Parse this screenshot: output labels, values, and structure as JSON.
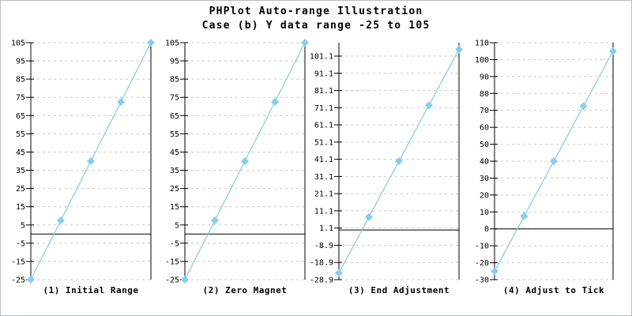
{
  "title": {
    "line1": "PHPlot Auto-range Illustration",
    "line2": "Case (b) Y data range -25 to 105"
  },
  "colors": {
    "data_line": "#87ceeb",
    "marker_fill": "#87ceeb",
    "grid": "#c8c8c8",
    "axis": "#000000",
    "zero_line": "#000000",
    "text": "#000000",
    "background": "#ffffff",
    "frame_border": "#b8bcc0"
  },
  "chart_data": [
    {
      "type": "line",
      "title": "(1) Initial Range",
      "x": [
        1,
        2,
        3,
        4,
        5
      ],
      "y": [
        -25,
        7.5,
        40,
        72.5,
        105
      ],
      "ylim": [
        -25,
        105
      ],
      "ytick_values": [
        105,
        95,
        85,
        75,
        65,
        55,
        45,
        35,
        25,
        15,
        5,
        -5,
        -15,
        -25
      ],
      "ytick_labels": [
        "105",
        "95",
        "85",
        "75",
        "65",
        "55",
        "45",
        "35",
        "25",
        "15",
        "5",
        "-5",
        "-15",
        "-25"
      ],
      "zero_line_at": 0,
      "grid": "dashed-horizontal",
      "marker": "diamond",
      "legend": "none"
    },
    {
      "type": "line",
      "title": "(2) Zero Magnet",
      "x": [
        1,
        2,
        3,
        4,
        5
      ],
      "y": [
        -25,
        7.5,
        40,
        72.5,
        105
      ],
      "ylim": [
        -25,
        105
      ],
      "ytick_values": [
        105,
        95,
        85,
        75,
        65,
        55,
        45,
        35,
        25,
        15,
        5,
        -5,
        -15,
        -25
      ],
      "ytick_labels": [
        "105",
        "95",
        "85",
        "75",
        "65",
        "55",
        "45",
        "35",
        "25",
        "15",
        "5",
        "-5",
        "-15",
        "-25"
      ],
      "zero_line_at": 0,
      "grid": "dashed-horizontal",
      "marker": "diamond",
      "legend": "none"
    },
    {
      "type": "line",
      "title": "(3) End Adjustment",
      "x": [
        1,
        2,
        3,
        4,
        5
      ],
      "y": [
        -25,
        7.5,
        40,
        72.5,
        105
      ],
      "ylim": [
        -28.9,
        108.9
      ],
      "ytick_values": [
        101.1,
        91.1,
        81.1,
        71.1,
        61.1,
        51.1,
        41.1,
        31.1,
        21.1,
        11.1,
        1.1,
        -8.9,
        -18.9,
        -28.9
      ],
      "ytick_labels": [
        "101.1",
        "91.1",
        "81.1",
        "71.1",
        "61.1",
        "51.1",
        "41.1",
        "31.1",
        "21.1",
        "11.1",
        "1.1",
        "-8.9",
        "-18.9",
        "-28.9"
      ],
      "zero_line_at": 0,
      "grid": "dashed-horizontal",
      "marker": "diamond",
      "legend": "none"
    },
    {
      "type": "line",
      "title": "(4) Adjust to Tick",
      "x": [
        1,
        2,
        3,
        4,
        5
      ],
      "y": [
        -25,
        7.5,
        40,
        72.5,
        105
      ],
      "ylim": [
        -30,
        110
      ],
      "ytick_values": [
        110,
        100,
        90,
        80,
        70,
        60,
        50,
        40,
        30,
        20,
        10,
        0,
        -10,
        -20,
        -30
      ],
      "ytick_labels": [
        "110",
        "100",
        "90",
        "80",
        "70",
        "60",
        "50",
        "40",
        "30",
        "20",
        "10",
        "0",
        "-10",
        "-20",
        "-30"
      ],
      "zero_line_at": 0,
      "grid": "dashed-horizontal",
      "marker": "diamond",
      "legend": "none"
    }
  ]
}
